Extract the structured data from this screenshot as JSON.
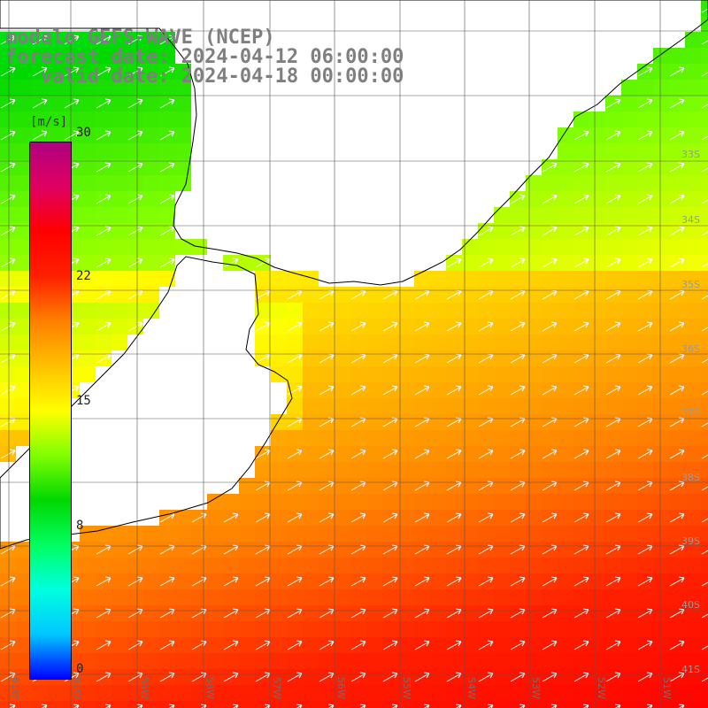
{
  "title": {
    "line1": "modelo GEFS-WAVE (NCEP)",
    "line2": "forecast date: 2024-04-12 06:00:00",
    "line3": "   valid date: 2024-04-18 00:00:00"
  },
  "colorbar": {
    "units": "[m/s]",
    "ticks": [
      {
        "label": "30",
        "value": 30
      },
      {
        "label": "22",
        "value": 22
      },
      {
        "label": "15",
        "value": 15
      },
      {
        "label": "8",
        "value": 8
      },
      {
        "label": "0",
        "value": 0
      }
    ],
    "stops": [
      "#0000ff",
      "#00c8ff",
      "#00ffe0",
      "#00ff60",
      "#00d800",
      "#80ff00",
      "#ffff00",
      "#ffc000",
      "#ff8000",
      "#ff2000",
      "#ff0000",
      "#e00060",
      "#b00080"
    ]
  },
  "map": {
    "lon_labels": [
      "61W",
      "60W",
      "59W",
      "58W",
      "57W",
      "56W",
      "55W",
      "54W",
      "53W",
      "52W",
      "51W"
    ],
    "lat_labels": [
      "33S",
      "34S",
      "35S",
      "36S",
      "37S",
      "38S",
      "39S",
      "40S",
      "41S"
    ],
    "land_color": "#ffffff",
    "grid_color": "#555555",
    "arrow_color": "#ffffff"
  }
}
